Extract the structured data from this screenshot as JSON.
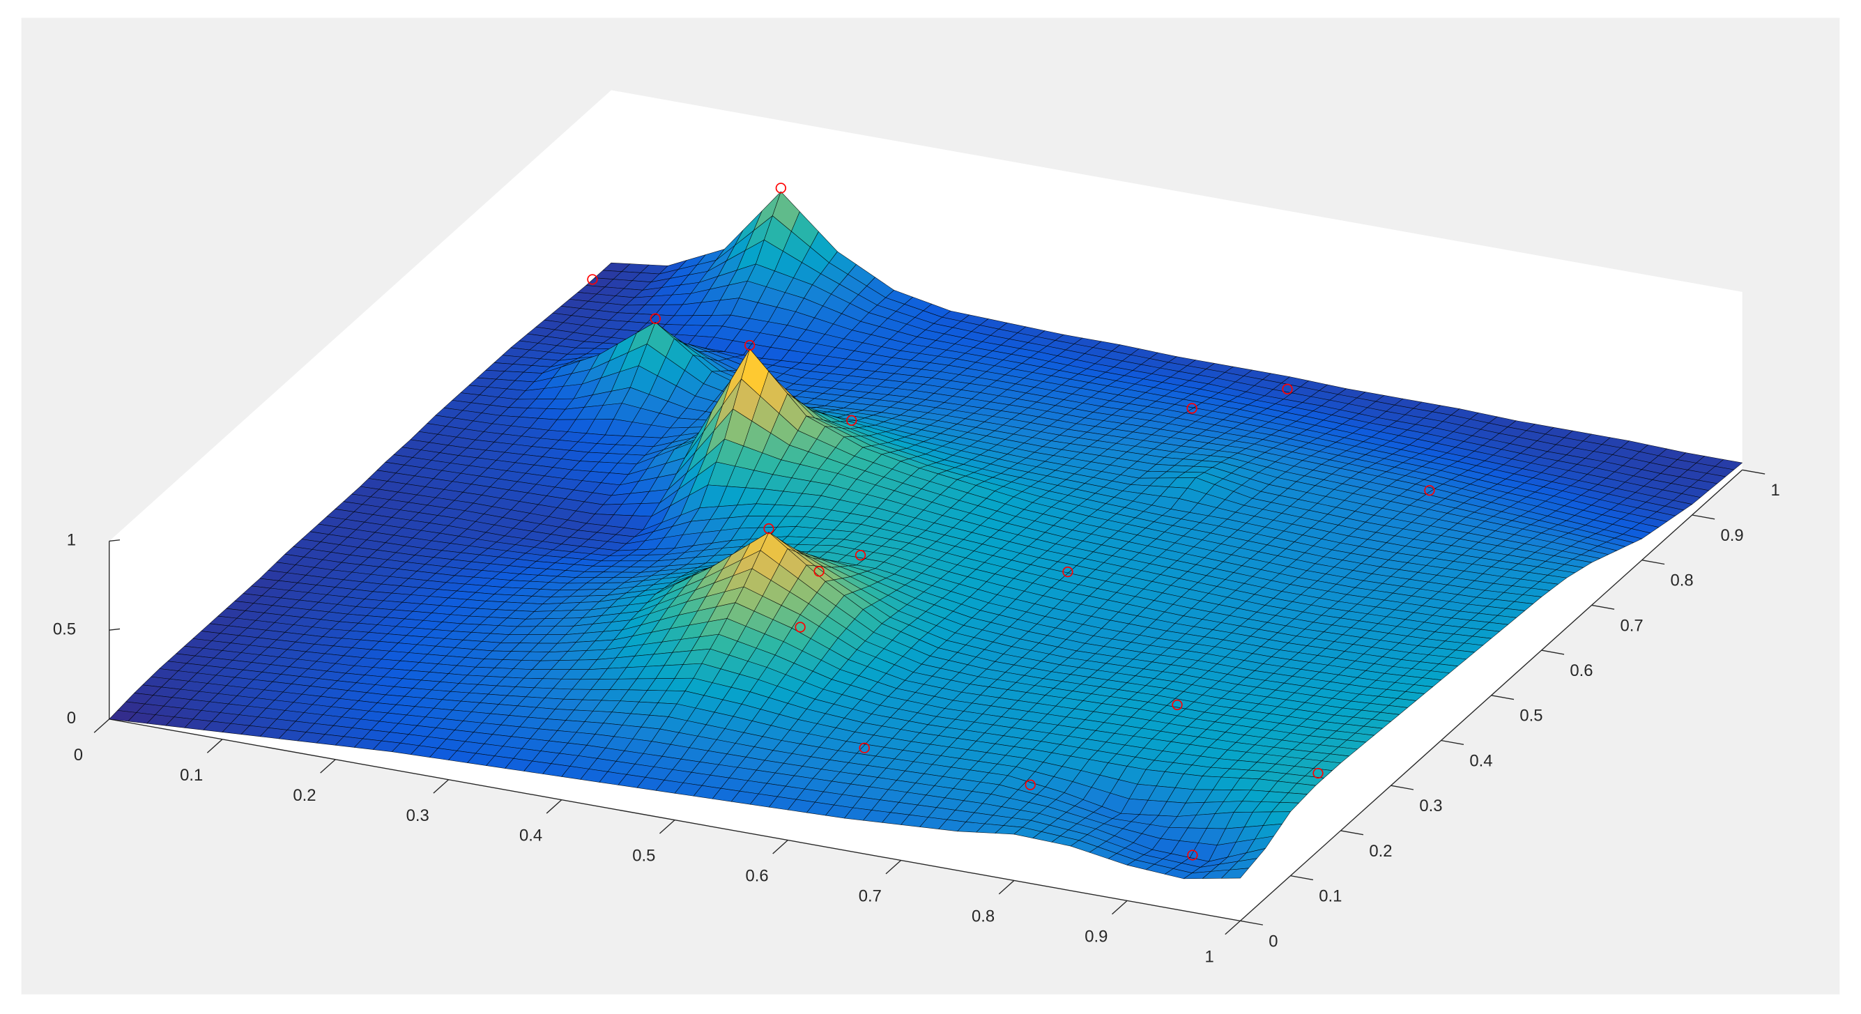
{
  "chart_data": {
    "type": "surface",
    "x": [
      0,
      0.05,
      0.1,
      0.15,
      0.2,
      0.25,
      0.3,
      0.35,
      0.4,
      0.45,
      0.5,
      0.55,
      0.6,
      0.65,
      0.7,
      0.75,
      0.8,
      0.85,
      0.9,
      0.95,
      1
    ],
    "y": [
      0,
      0.05,
      0.1,
      0.15,
      0.2,
      0.25,
      0.3,
      0.35,
      0.4,
      0.45,
      0.5,
      0.55,
      0.6,
      0.65,
      0.7,
      0.75,
      0.8,
      0.85,
      0.9,
      0.95,
      1
    ],
    "z": [
      [
        0.0,
        0.02,
        0.04,
        0.06,
        0.08,
        0.1,
        0.11,
        0.12,
        0.13,
        0.14,
        0.15,
        0.16,
        0.17,
        0.18,
        0.2,
        0.22,
        0.26,
        0.25,
        0.2,
        0.18,
        0.24
      ],
      [
        0.02,
        0.04,
        0.06,
        0.08,
        0.1,
        0.12,
        0.14,
        0.16,
        0.18,
        0.19,
        0.2,
        0.21,
        0.22,
        0.23,
        0.24,
        0.25,
        0.25,
        0.22,
        0.16,
        0.15,
        0.28
      ],
      [
        0.03,
        0.05,
        0.07,
        0.09,
        0.11,
        0.14,
        0.17,
        0.2,
        0.24,
        0.27,
        0.26,
        0.25,
        0.25,
        0.26,
        0.27,
        0.28,
        0.24,
        0.18,
        0.22,
        0.3,
        0.36
      ],
      [
        0.03,
        0.05,
        0.07,
        0.09,
        0.12,
        0.15,
        0.19,
        0.24,
        0.3,
        0.36,
        0.34,
        0.3,
        0.28,
        0.28,
        0.29,
        0.3,
        0.3,
        0.3,
        0.32,
        0.36,
        0.38
      ],
      [
        0.03,
        0.05,
        0.07,
        0.1,
        0.13,
        0.16,
        0.21,
        0.28,
        0.38,
        0.48,
        0.42,
        0.34,
        0.3,
        0.29,
        0.3,
        0.31,
        0.32,
        0.33,
        0.34,
        0.36,
        0.38
      ],
      [
        0.03,
        0.05,
        0.07,
        0.1,
        0.13,
        0.17,
        0.23,
        0.32,
        0.48,
        0.62,
        0.52,
        0.38,
        0.31,
        0.3,
        0.31,
        0.32,
        0.33,
        0.33,
        0.34,
        0.35,
        0.37
      ],
      [
        0.03,
        0.05,
        0.07,
        0.1,
        0.13,
        0.17,
        0.24,
        0.34,
        0.55,
        0.8,
        0.58,
        0.4,
        0.32,
        0.3,
        0.3,
        0.31,
        0.32,
        0.32,
        0.33,
        0.34,
        0.36
      ],
      [
        0.04,
        0.05,
        0.07,
        0.09,
        0.12,
        0.16,
        0.22,
        0.31,
        0.46,
        0.58,
        0.48,
        0.38,
        0.32,
        0.3,
        0.29,
        0.3,
        0.31,
        0.31,
        0.32,
        0.33,
        0.35
      ],
      [
        0.04,
        0.05,
        0.06,
        0.08,
        0.1,
        0.13,
        0.18,
        0.26,
        0.34,
        0.4,
        0.4,
        0.36,
        0.32,
        0.3,
        0.29,
        0.29,
        0.3,
        0.3,
        0.31,
        0.32,
        0.34
      ],
      [
        0.04,
        0.05,
        0.06,
        0.06,
        0.07,
        0.09,
        0.16,
        0.26,
        0.34,
        0.38,
        0.38,
        0.35,
        0.33,
        0.31,
        0.3,
        0.29,
        0.29,
        0.29,
        0.3,
        0.31,
        0.33
      ],
      [
        0.04,
        0.05,
        0.06,
        0.06,
        0.06,
        0.08,
        0.26,
        0.34,
        0.38,
        0.38,
        0.36,
        0.34,
        0.32,
        0.31,
        0.3,
        0.29,
        0.28,
        0.28,
        0.29,
        0.3,
        0.32
      ],
      [
        0.05,
        0.06,
        0.07,
        0.08,
        0.09,
        0.18,
        0.52,
        0.46,
        0.44,
        0.4,
        0.36,
        0.33,
        0.31,
        0.3,
        0.29,
        0.28,
        0.27,
        0.27,
        0.28,
        0.29,
        0.31
      ],
      [
        0.05,
        0.06,
        0.08,
        0.1,
        0.14,
        0.32,
        0.9,
        0.58,
        0.46,
        0.4,
        0.36,
        0.32,
        0.3,
        0.29,
        0.28,
        0.27,
        0.26,
        0.26,
        0.27,
        0.28,
        0.3
      ],
      [
        0.06,
        0.07,
        0.09,
        0.12,
        0.16,
        0.26,
        0.55,
        0.42,
        0.36,
        0.32,
        0.3,
        0.29,
        0.28,
        0.27,
        0.27,
        0.26,
        0.25,
        0.25,
        0.26,
        0.27,
        0.28
      ],
      [
        0.06,
        0.08,
        0.14,
        0.26,
        0.2,
        0.2,
        0.3,
        0.3,
        0.28,
        0.27,
        0.26,
        0.26,
        0.26,
        0.32,
        0.26,
        0.25,
        0.24,
        0.24,
        0.24,
        0.24,
        0.24
      ],
      [
        0.06,
        0.1,
        0.26,
        0.5,
        0.28,
        0.18,
        0.2,
        0.22,
        0.23,
        0.23,
        0.23,
        0.24,
        0.25,
        0.28,
        0.25,
        0.24,
        0.23,
        0.22,
        0.21,
        0.2,
        0.18
      ],
      [
        0.06,
        0.08,
        0.14,
        0.26,
        0.16,
        0.14,
        0.16,
        0.18,
        0.19,
        0.2,
        0.2,
        0.21,
        0.22,
        0.23,
        0.22,
        0.21,
        0.2,
        0.18,
        0.16,
        0.14,
        0.12
      ],
      [
        0.05,
        0.06,
        0.08,
        0.1,
        0.1,
        0.12,
        0.14,
        0.16,
        0.17,
        0.17,
        0.17,
        0.18,
        0.18,
        0.18,
        0.17,
        0.16,
        0.15,
        0.13,
        0.12,
        0.1,
        0.09
      ],
      [
        0.04,
        0.06,
        0.1,
        0.16,
        0.16,
        0.14,
        0.13,
        0.14,
        0.14,
        0.14,
        0.14,
        0.14,
        0.14,
        0.13,
        0.12,
        0.11,
        0.1,
        0.09,
        0.08,
        0.07,
        0.06
      ],
      [
        0.03,
        0.06,
        0.16,
        0.32,
        0.26,
        0.16,
        0.12,
        0.11,
        0.11,
        0.1,
        0.1,
        0.1,
        0.09,
        0.09,
        0.08,
        0.08,
        0.07,
        0.06,
        0.06,
        0.05,
        0.05
      ],
      [
        0.03,
        0.07,
        0.22,
        0.6,
        0.32,
        0.16,
        0.1,
        0.09,
        0.08,
        0.08,
        0.07,
        0.07,
        0.07,
        0.06,
        0.06,
        0.06,
        0.05,
        0.05,
        0.05,
        0.04,
        0.04
      ]
    ],
    "colormap": [
      "#352a87",
      "#0f5cdd",
      "#1481d6",
      "#06a4ca",
      "#2eb7a4",
      "#87bf77",
      "#d1bb59",
      "#fec832",
      "#f9fb0e"
    ],
    "edge_color": "#000000",
    "xlim": [
      0,
      1
    ],
    "ylim": [
      0,
      1
    ],
    "zlim": [
      0,
      1
    ],
    "xticks": [
      0,
      0.1,
      0.2,
      0.3,
      0.4,
      0.5,
      0.6,
      0.7,
      0.8,
      0.9,
      1
    ],
    "yticks": [
      0,
      0.1,
      0.2,
      0.3,
      0.4,
      0.5,
      0.6,
      0.7,
      0.8,
      0.9,
      1
    ],
    "zticks": [
      0,
      0.5,
      1
    ],
    "points": {
      "x": [
        0.15,
        0.01,
        0.15,
        0.3,
        0.45,
        0.58,
        0.62,
        0.83,
        0.63,
        0.82,
        0.98,
        0.77,
        0.94,
        0.61,
        0.39,
        0.49,
        0.5,
        0.5
      ],
      "y": [
        1.0,
        0.94,
        0.75,
        0.6,
        0.3,
        0.85,
        0.95,
        0.76,
        0.49,
        0.28,
        0.2,
        0.1,
        0.04,
        0.13,
        0.6,
        0.31,
        0.37,
        0.25
      ],
      "z": [
        0.62,
        0.1,
        0.52,
        0.92,
        0.82,
        0.25,
        0.15,
        0.3,
        0.3,
        0.3,
        0.3,
        0.25,
        0.2,
        0.2,
        0.6,
        0.6,
        0.55,
        0.45
      ],
      "color": "#ff0000"
    }
  }
}
